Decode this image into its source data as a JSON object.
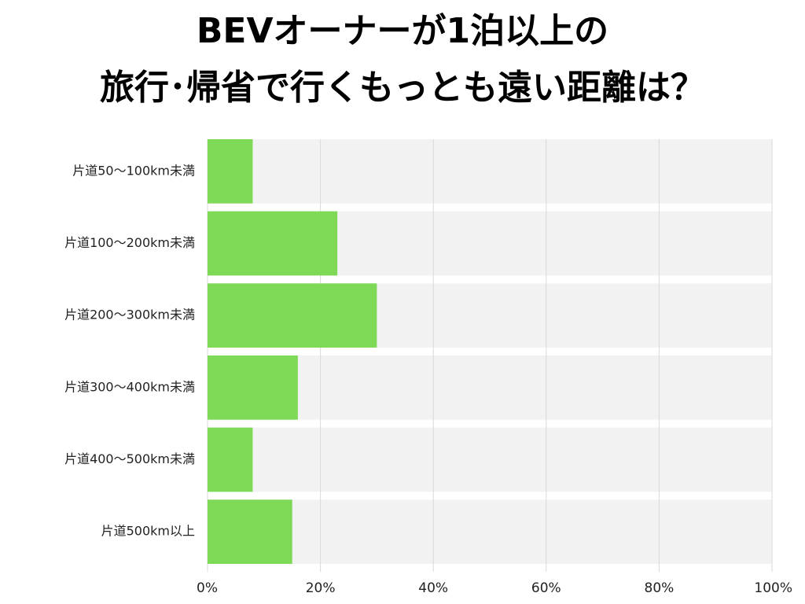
{
  "title": {
    "line1": "BEVオーナーが1泊以上の",
    "line2": "旅行･帰省で行くもっとも遠い距離は？"
  },
  "colors": {
    "bar": "#7ed957",
    "track": "#f2f2f2",
    "gridline": "#d9d9d9",
    "text": "#222222"
  },
  "chart_data": {
    "type": "bar",
    "orientation": "horizontal",
    "categories": [
      "片道50〜100km未満",
      "片道100〜200km未満",
      "片道200〜300km未満",
      "片道300〜400km未満",
      "片道400〜500km未満",
      "片道500km以上"
    ],
    "values": [
      8,
      23,
      30,
      16,
      8,
      15
    ],
    "xlim": [
      0,
      100
    ],
    "xticks": [
      "0%",
      "20%",
      "40%",
      "60%",
      "80%",
      "100%"
    ],
    "grid": true,
    "legend": "none"
  }
}
